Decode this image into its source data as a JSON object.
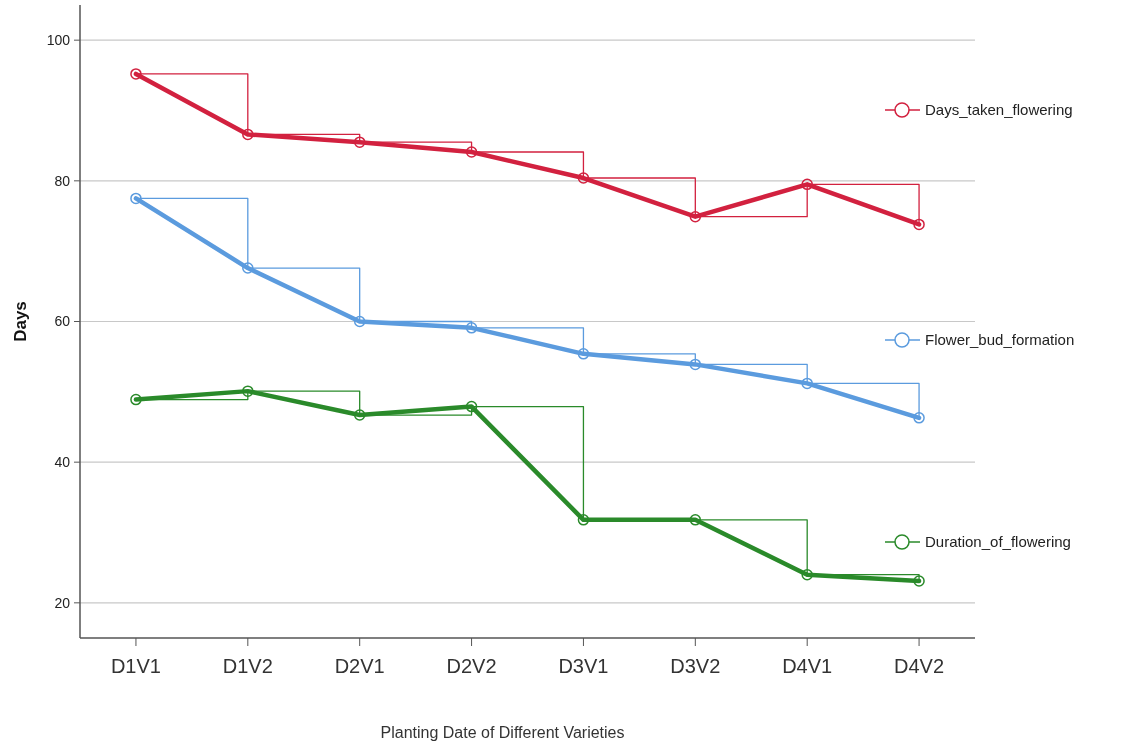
{
  "chart_data": {
    "type": "line",
    "xlabel": "Planting Date of Different Varieties",
    "ylabel": "Days",
    "categories": [
      "D1V1",
      "D1V2",
      "D2V1",
      "D2V2",
      "D3V1",
      "D3V2",
      "D4V1",
      "D4V2"
    ],
    "ylim": [
      15,
      105
    ],
    "yticks": [
      20,
      40,
      60,
      80,
      100
    ],
    "grid": "y",
    "legend": "right",
    "line_style": "solid",
    "marker": "circle",
    "series": [
      {
        "name": "Days_taken_flowering",
        "color": "#d2213f",
        "values": [
          95.2,
          86.6,
          85.5,
          84.1,
          80.4,
          74.9,
          79.5,
          73.8
        ]
      },
      {
        "color": "#d2213f",
        "type": "step",
        "marker": "none",
        "values": [
          95.2,
          86.6,
          85.5,
          84.1,
          80.4,
          74.9,
          79.5,
          73.8
        ]
      },
      {
        "name": "Flower_bud_formation",
        "color": "#5b9bde",
        "values": [
          77.5,
          67.6,
          60.0,
          59.1,
          55.4,
          53.9,
          51.2,
          46.3
        ]
      },
      {
        "color": "#5b9bde",
        "type": "step",
        "marker": "none",
        "values": [
          77.5,
          67.6,
          60.0,
          59.1,
          55.4,
          53.9,
          51.2,
          46.3
        ]
      },
      {
        "name": "Duration_of_flowering",
        "color": "#2a8a2a",
        "values": [
          48.9,
          50.1,
          46.7,
          47.9,
          31.8,
          31.8,
          24.0,
          23.1
        ]
      },
      {
        "color": "#2a8a2a",
        "type": "step",
        "marker": "none",
        "values": [
          48.9,
          50.1,
          46.7,
          47.9,
          31.8,
          31.8,
          24.0,
          23.1
        ]
      }
    ]
  }
}
